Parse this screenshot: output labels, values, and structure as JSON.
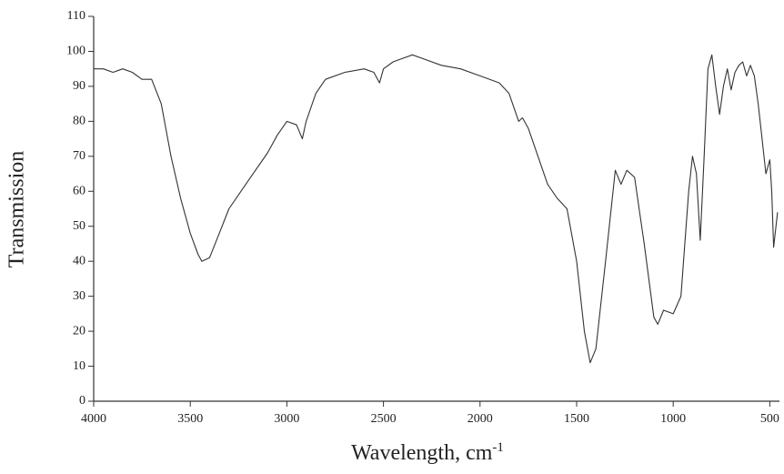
{
  "chart_data": {
    "type": "line",
    "xlabel": {
      "text": "Wavelength, cm",
      "superscript": "-1"
    },
    "ylabel": "Transmission",
    "x": [
      4000,
      3950,
      3900,
      3850,
      3800,
      3750,
      3700,
      3650,
      3600,
      3550,
      3500,
      3460,
      3440,
      3400,
      3350,
      3300,
      3200,
      3100,
      3050,
      3000,
      2950,
      2920,
      2900,
      2850,
      2800,
      2700,
      2600,
      2550,
      2520,
      2500,
      2450,
      2400,
      2350,
      2300,
      2200,
      2100,
      2000,
      1900,
      1850,
      1800,
      1780,
      1750,
      1700,
      1650,
      1600,
      1550,
      1500,
      1460,
      1430,
      1400,
      1350,
      1300,
      1270,
      1240,
      1200,
      1150,
      1100,
      1080,
      1050,
      1000,
      960,
      920,
      900,
      880,
      860,
      840,
      820,
      800,
      780,
      760,
      740,
      720,
      700,
      680,
      660,
      640,
      620,
      600,
      580,
      560,
      540,
      520,
      500,
      490,
      480,
      460
    ],
    "values": [
      95,
      95,
      94,
      95,
      94,
      92,
      92,
      85,
      70,
      58,
      48,
      42,
      40,
      41,
      48,
      55,
      63,
      71,
      76,
      80,
      79,
      75,
      80,
      88,
      92,
      94,
      95,
      94,
      91,
      95,
      97,
      98,
      99,
      98,
      96,
      95,
      93,
      91,
      88,
      80,
      81,
      78,
      70,
      62,
      58,
      55,
      40,
      20,
      11,
      15,
      40,
      66,
      62,
      66,
      64,
      45,
      24,
      22,
      26,
      25,
      30,
      60,
      70,
      65,
      46,
      70,
      95,
      99,
      90,
      82,
      90,
      95,
      89,
      94,
      96,
      97,
      93,
      96,
      93,
      85,
      75,
      65,
      69,
      60,
      44,
      54
    ],
    "color": "#333333",
    "xlim": [
      4000,
      450
    ],
    "xticks": [
      4000,
      3500,
      3000,
      2500,
      2000,
      1500,
      1000,
      500
    ],
    "ylim": [
      0,
      110
    ],
    "yticks": [
      0,
      10,
      20,
      30,
      40,
      50,
      60,
      70,
      80,
      90,
      100,
      110
    ]
  }
}
